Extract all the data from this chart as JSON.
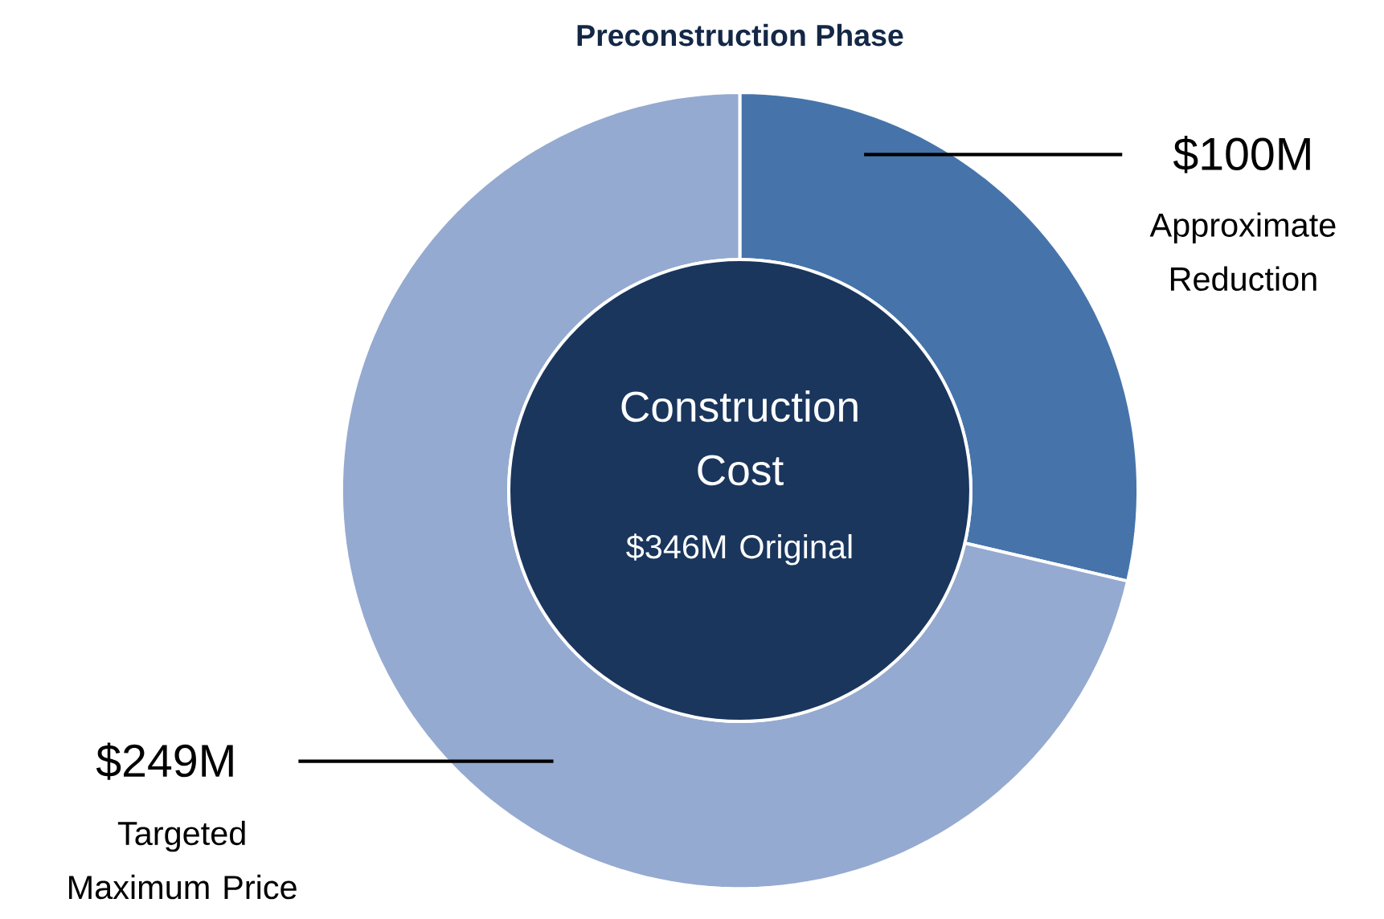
{
  "chart_data": {
    "type": "donut",
    "title": "Preconstruction Phase",
    "categories": [
      "Approximate Reduction",
      "Targeted Maximum Price"
    ],
    "values": [
      100,
      249
    ],
    "value_labels": [
      "$100M",
      "$249M"
    ],
    "colors": [
      "#4674aa",
      "#95aad0"
    ],
    "annotations": [
      "Construction Cost",
      "$346M Original"
    ]
  }
}
